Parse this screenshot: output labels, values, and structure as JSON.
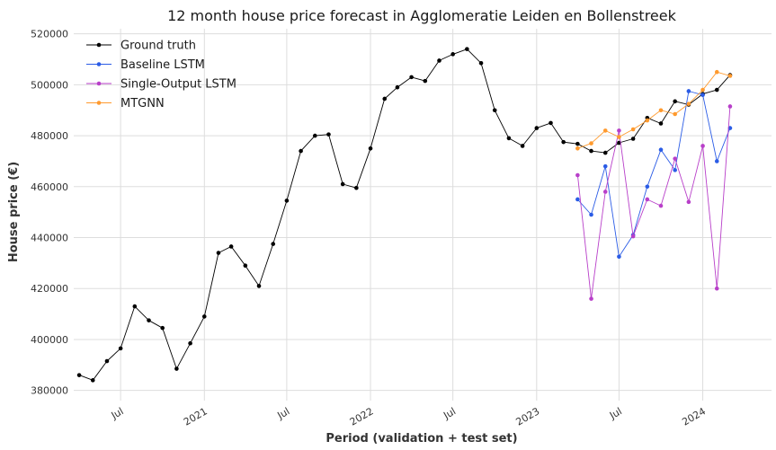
{
  "chart_data": {
    "type": "line",
    "title": "12 month house price forecast in Agglomeratie Leiden en Bollenstreek",
    "xlabel": "Period (validation + test set)",
    "ylabel": "House price (€)",
    "ylim": [
      376000,
      522000
    ],
    "xlim": [
      "2020-03-20",
      "2024-05-31"
    ],
    "grid": true,
    "legend_position": "top-left",
    "y_ticks": [
      380000,
      400000,
      420000,
      440000,
      460000,
      480000,
      500000,
      520000
    ],
    "y_tick_labels": [
      "380000",
      "400000",
      "420000",
      "440000",
      "460000",
      "480000",
      "500000",
      "520000"
    ],
    "x_ticks": [
      {
        "date": "2020-07-01",
        "label": "Jul"
      },
      {
        "date": "2021-01-01",
        "label": "2021"
      },
      {
        "date": "2021-07-01",
        "label": "Jul"
      },
      {
        "date": "2022-01-01",
        "label": "2022"
      },
      {
        "date": "2022-07-01",
        "label": "Jul"
      },
      {
        "date": "2023-01-01",
        "label": "2023"
      },
      {
        "date": "2023-07-01",
        "label": "Jul"
      },
      {
        "date": "2024-01-01",
        "label": "2024"
      }
    ],
    "series": [
      {
        "name": "Ground truth",
        "color": "#000000",
        "x": [
          "2020-04-01",
          "2020-05-01",
          "2020-06-01",
          "2020-07-01",
          "2020-08-01",
          "2020-09-01",
          "2020-10-01",
          "2020-11-01",
          "2020-12-01",
          "2021-01-01",
          "2021-02-01",
          "2021-03-01",
          "2021-04-01",
          "2021-05-01",
          "2021-06-01",
          "2021-07-01",
          "2021-08-01",
          "2021-09-01",
          "2021-10-01",
          "2021-11-01",
          "2021-12-01",
          "2022-01-01",
          "2022-02-01",
          "2022-03-01",
          "2022-04-01",
          "2022-05-01",
          "2022-06-01",
          "2022-07-01",
          "2022-08-01",
          "2022-09-01",
          "2022-10-01",
          "2022-11-01",
          "2022-12-01",
          "2023-01-01",
          "2023-02-01",
          "2023-03-01",
          "2023-04-01",
          "2023-05-01",
          "2023-06-01",
          "2023-07-01",
          "2023-08-01",
          "2023-09-01",
          "2023-10-01",
          "2023-11-01",
          "2023-12-01",
          "2024-01-01",
          "2024-02-01",
          "2024-03-01"
        ],
        "values": [
          386000,
          384000,
          391500,
          396500,
          413000,
          407500,
          404500,
          388500,
          398500,
          409000,
          434000,
          436500,
          429000,
          421000,
          437500,
          454500,
          474000,
          480000,
          480500,
          461000,
          459500,
          475000,
          494500,
          499000,
          503000,
          501500,
          509500,
          512000,
          514000,
          508500,
          490000,
          479000,
          476000,
          483000,
          485000,
          477500,
          476800,
          474000,
          473300,
          477200,
          478800,
          487000,
          484800,
          493500,
          492200,
          496400,
          498000,
          503800
        ]
      },
      {
        "name": "Baseline LSTM",
        "color": "#2b5ce6",
        "x": [
          "2023-04-01",
          "2023-05-01",
          "2023-06-01",
          "2023-07-01",
          "2023-08-01",
          "2023-09-01",
          "2023-10-01",
          "2023-11-01",
          "2023-12-01",
          "2024-01-01",
          "2024-02-01",
          "2024-03-01"
        ],
        "values": [
          455000,
          449000,
          468000,
          432500,
          441000,
          460000,
          474500,
          466500,
          497500,
          496000,
          470000,
          483000
        ]
      },
      {
        "name": "Single-Output LSTM",
        "color": "#b83fc9",
        "x": [
          "2023-04-01",
          "2023-05-01",
          "2023-06-01",
          "2023-07-01",
          "2023-08-01",
          "2023-09-01",
          "2023-10-01",
          "2023-11-01",
          "2023-12-01",
          "2024-01-01",
          "2024-02-01",
          "2024-03-01"
        ],
        "values": [
          464500,
          416000,
          458000,
          482000,
          440500,
          455000,
          452500,
          471000,
          454000,
          476000,
          420000,
          491500
        ]
      },
      {
        "name": "MTGNN",
        "color": "#ff9a2e",
        "x": [
          "2023-04-01",
          "2023-05-01",
          "2023-06-01",
          "2023-07-01",
          "2023-08-01",
          "2023-09-01",
          "2023-10-01",
          "2023-11-01",
          "2023-12-01",
          "2024-01-01",
          "2024-02-01",
          "2024-03-01"
        ],
        "values": [
          475000,
          477000,
          482000,
          479500,
          482500,
          486000,
          490000,
          488500,
          492500,
          498000,
          505000,
          503500
        ]
      }
    ]
  }
}
